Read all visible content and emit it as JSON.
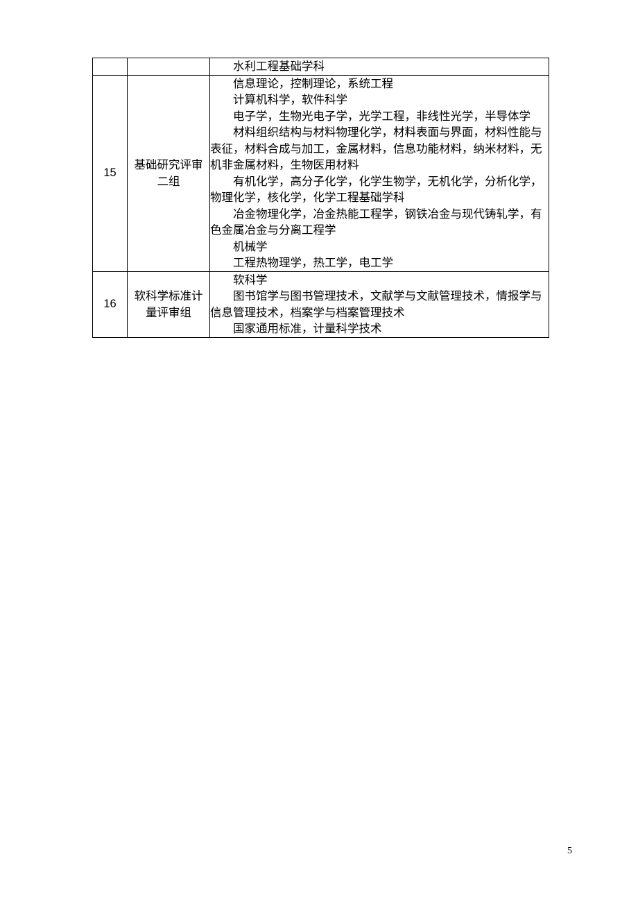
{
  "table": {
    "rows": [
      {
        "num": "",
        "name": "",
        "content_lines": [
          {
            "text": "水利工程基础学科",
            "indent": true
          }
        ]
      },
      {
        "num": "15",
        "name": "基础研究评审二组",
        "content_lines": [
          {
            "text": "信息理论，控制理论，系统工程",
            "indent": true
          },
          {
            "text": "计算机科学，软件科学",
            "indent": true
          },
          {
            "text": "电子学，生物光电子学，光学工程，非线性光学，半导体学",
            "indent": true
          },
          {
            "text": "材料组织结构与材料物理化学，材料表面与界面，材料性能与表征，材料合成与加工，金属材料，信息功能材料，纳米材料，无机非金属材料，生物医用材料",
            "indent": true
          },
          {
            "text": "有机化学，高分子化学，化学生物学，无机化学，分析化学，物理化学，核化学，化学工程基础学科",
            "indent": true
          },
          {
            "text": "冶金物理化学，冶金热能工程学，钢铁冶金与现代铸轧学，有色金属冶金与分离工程学",
            "indent": true
          },
          {
            "text": "机械学",
            "indent": true
          },
          {
            "text": "工程热物理学，热工学，电工学",
            "indent": true
          }
        ]
      },
      {
        "num": "16",
        "name": "软科学标准计量评审组",
        "content_lines": [
          {
            "text": "软科学",
            "indent": true
          },
          {
            "text": "图书馆学与图书管理技术，文献学与文献管理技术，情报学与信息管理技术，档案学与档案管理技术",
            "indent": true
          },
          {
            "text": "国家通用标准，计量科学技术",
            "indent": true
          }
        ]
      }
    ]
  },
  "page_number": "5",
  "styles": {
    "background_color": "#ffffff",
    "border_color": "#000000",
    "text_color": "#000000",
    "font_size": 16.5,
    "line_height": 23.5
  }
}
